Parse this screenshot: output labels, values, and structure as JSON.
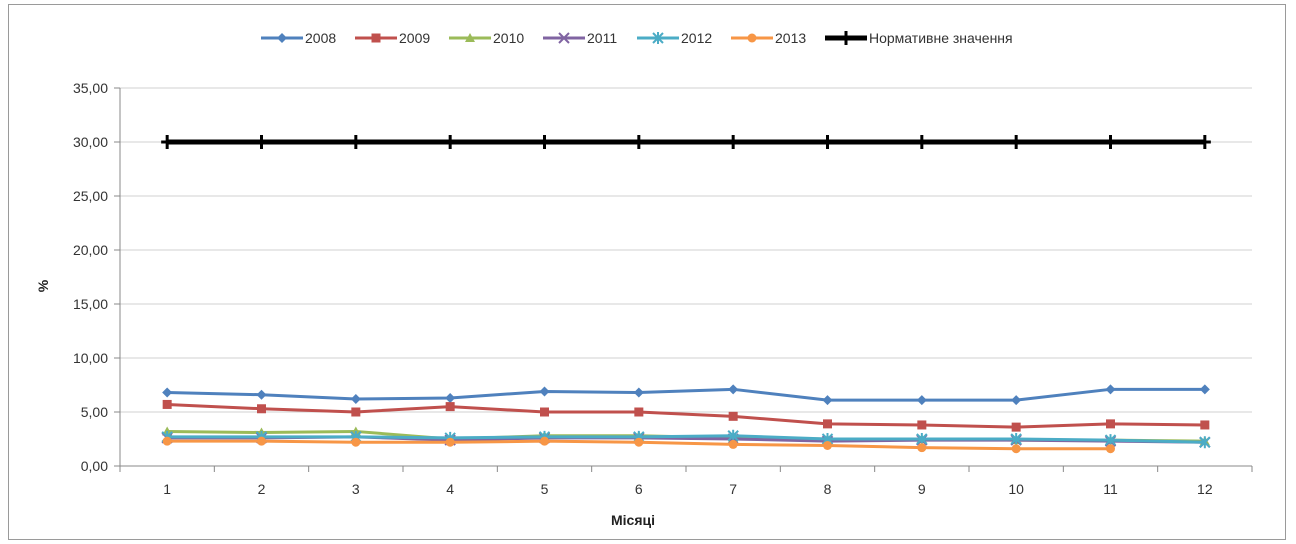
{
  "chart_data": {
    "type": "line",
    "xlabel": "Місяці",
    "ylabel": "%",
    "ylim": [
      0,
      35
    ],
    "yticks": [
      "0,00",
      "5,00",
      "10,00",
      "15,00",
      "20,00",
      "25,00",
      "30,00",
      "35,00"
    ],
    "ytick_values": [
      0,
      5,
      10,
      15,
      20,
      25,
      30,
      35
    ],
    "categories": [
      "1",
      "2",
      "3",
      "4",
      "5",
      "6",
      "7",
      "8",
      "9",
      "10",
      "11",
      "12"
    ],
    "grid": true,
    "legend_position": "top",
    "series": [
      {
        "name": "2008",
        "color": "#4f81bd",
        "marker": "diamond",
        "values": [
          6.8,
          6.6,
          6.2,
          6.3,
          6.9,
          6.8,
          7.1,
          6.1,
          6.1,
          6.1,
          7.1,
          7.1
        ]
      },
      {
        "name": "2009",
        "color": "#c0504d",
        "marker": "square",
        "values": [
          5.7,
          5.3,
          5.0,
          5.5,
          5.0,
          5.0,
          4.6,
          3.9,
          3.8,
          3.6,
          3.9,
          3.8
        ]
      },
      {
        "name": "2010",
        "color": "#9bbb59",
        "marker": "triangle",
        "values": [
          3.2,
          3.1,
          3.2,
          2.5,
          2.8,
          2.8,
          2.6,
          2.5,
          2.5,
          2.4,
          2.4,
          2.3
        ]
      },
      {
        "name": "2011",
        "color": "#8064a2",
        "marker": "x",
        "values": [
          2.6,
          2.6,
          2.7,
          2.4,
          2.6,
          2.6,
          2.5,
          2.3,
          2.4,
          2.4,
          2.3,
          2.2
        ]
      },
      {
        "name": "2012",
        "color": "#4bacc6",
        "marker": "star",
        "values": [
          2.7,
          2.7,
          2.7,
          2.6,
          2.7,
          2.7,
          2.8,
          2.5,
          2.5,
          2.5,
          2.4,
          2.2
        ]
      },
      {
        "name": "2013",
        "color": "#f79646",
        "marker": "circle",
        "values": [
          2.3,
          2.3,
          2.2,
          2.2,
          2.3,
          2.2,
          2.0,
          1.9,
          1.7,
          1.6,
          1.6,
          null
        ]
      },
      {
        "name": "Нормативне значення",
        "color": "#000000",
        "marker": "plus",
        "values": [
          30,
          30,
          30,
          30,
          30,
          30,
          30,
          30,
          30,
          30,
          30,
          30
        ]
      }
    ]
  }
}
